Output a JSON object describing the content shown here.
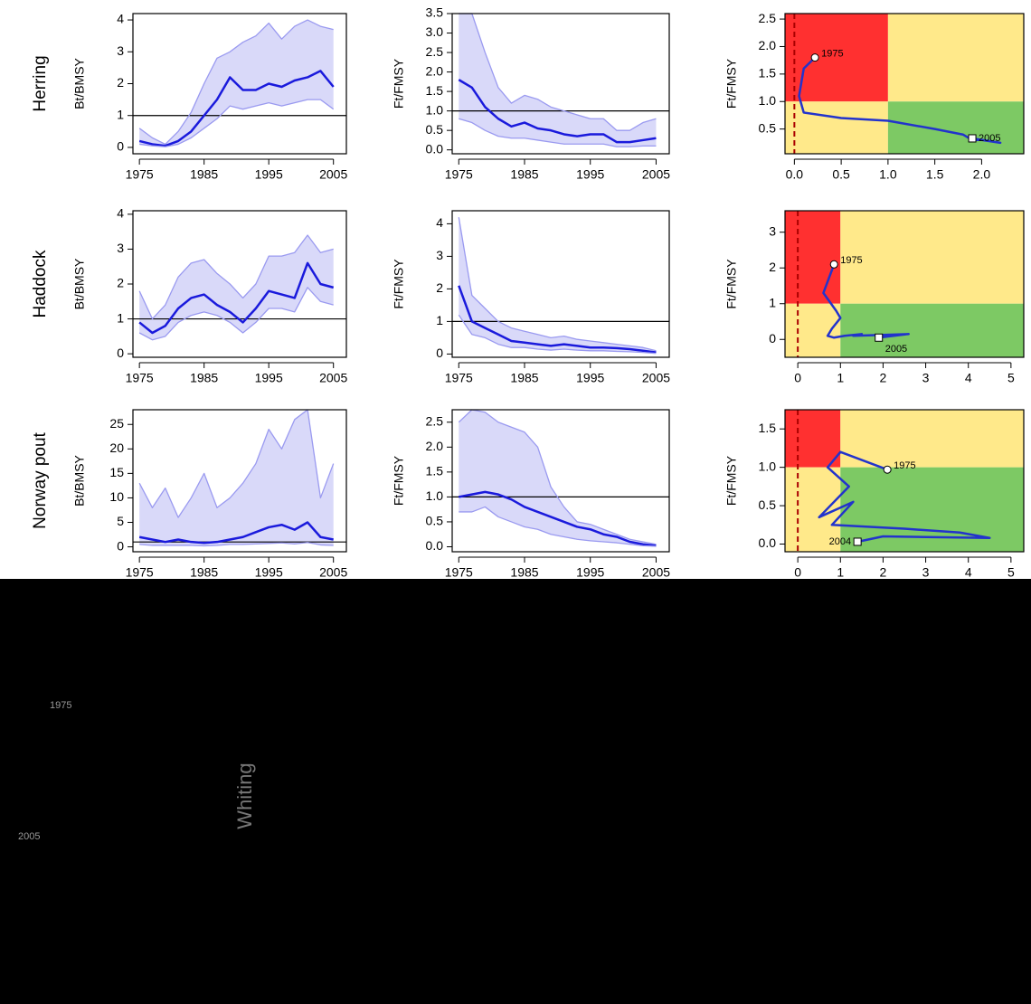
{
  "chart_data": [
    {
      "type": "line",
      "stock": "Herring",
      "y_label": "Bt/BMSY",
      "x": [
        1975,
        1977,
        1979,
        1981,
        1983,
        1985,
        1987,
        1989,
        1991,
        1993,
        1995,
        1997,
        1999,
        2001,
        2003,
        2005
      ],
      "series": [
        {
          "color": "#9a9af0",
          "values": [
            0.6,
            0.3,
            0.1,
            0.5,
            1.1,
            2.0,
            2.8,
            3.0,
            3.3,
            3.5,
            3.9,
            3.4,
            3.8,
            4.0,
            3.8,
            3.7
          ]
        },
        {
          "color": "#1a1adc",
          "values": [
            0.2,
            0.1,
            0.05,
            0.2,
            0.5,
            1.0,
            1.5,
            2.2,
            1.8,
            1.8,
            2.0,
            1.9,
            2.1,
            2.2,
            2.4,
            1.9
          ]
        },
        {
          "color": "#9a9af0",
          "values": [
            0.1,
            0.05,
            0.02,
            0.1,
            0.3,
            0.6,
            0.9,
            1.3,
            1.2,
            1.3,
            1.4,
            1.3,
            1.4,
            1.5,
            1.5,
            1.2
          ]
        }
      ],
      "xlim": [
        1974,
        2007
      ],
      "ylim": [
        -0.2,
        4.2
      ],
      "xticks": [
        1975,
        1985,
        1995,
        2005
      ],
      "yticks": [
        0,
        1,
        2,
        3,
        4
      ],
      "hline": 1
    },
    {
      "type": "line",
      "y_label": "Ft/FMSY",
      "x": [
        1975,
        1977,
        1979,
        1981,
        1983,
        1985,
        1987,
        1989,
        1991,
        1993,
        1995,
        1997,
        1999,
        2001,
        2003,
        2005
      ],
      "series": [
        {
          "color": "#9a9af0",
          "values": [
            3.5,
            3.5,
            2.5,
            1.6,
            1.2,
            1.4,
            1.3,
            1.1,
            1.0,
            0.9,
            0.8,
            0.8,
            0.5,
            0.5,
            0.7,
            0.8
          ]
        },
        {
          "color": "#1a1adc",
          "values": [
            1.8,
            1.6,
            1.1,
            0.8,
            0.6,
            0.7,
            0.55,
            0.5,
            0.4,
            0.35,
            0.4,
            0.4,
            0.2,
            0.2,
            0.25,
            0.3
          ]
        },
        {
          "color": "#9a9af0",
          "values": [
            0.8,
            0.7,
            0.5,
            0.35,
            0.3,
            0.3,
            0.25,
            0.2,
            0.15,
            0.15,
            0.15,
            0.15,
            0.08,
            0.08,
            0.1,
            0.1
          ]
        }
      ],
      "xlim": [
        1974,
        2007
      ],
      "ylim": [
        -0.1,
        3.5
      ],
      "xticks": [
        1975,
        1985,
        1995,
        2005
      ],
      "yticks": [
        {
          "value": 0,
          "label": "0.0"
        },
        0.5,
        {
          "value": 1,
          "label": "1.0"
        },
        1.5,
        {
          "value": 2,
          "label": "2.0"
        },
        2.5,
        {
          "value": 3,
          "label": "3.0"
        },
        3.5
      ],
      "hline": 1
    },
    {
      "type": "phase",
      "y_label": "Ft/FMSY",
      "x": [
        0.22,
        0.1,
        0.05,
        0.1,
        0.5,
        1.0,
        1.5,
        1.8,
        1.9,
        2.0,
        2.2,
        1.9
      ],
      "series": [
        {
          "color": "#2233cc",
          "values": [
            1.8,
            1.6,
            1.1,
            0.8,
            0.7,
            0.65,
            0.5,
            0.4,
            0.3,
            0.3,
            0.25,
            0.33
          ]
        }
      ],
      "start_label": "1975",
      "end_label": "2005",
      "xlim": [
        -0.1,
        2.45
      ],
      "ylim": [
        0.05,
        2.6
      ],
      "xticks": [
        {
          "value": 0,
          "label": "0.0"
        },
        0.5,
        {
          "value": 1,
          "label": "1.0"
        },
        1.5,
        {
          "value": 2,
          "label": "2.0"
        }
      ],
      "yticks": [
        0.5,
        {
          "value": 1,
          "label": "1.0"
        },
        1.5,
        {
          "value": 2,
          "label": "2.0"
        },
        2.5
      ],
      "hline": 1,
      "vline": 1,
      "ref_x": 0,
      "zone_colors": [
        "#ff3030",
        "#ffe98a",
        "#7dc964"
      ]
    },
    {
      "type": "line",
      "stock": "Haddock",
      "y_label": "Bt/BMSY",
      "x": [
        1975,
        1977,
        1979,
        1981,
        1983,
        1985,
        1987,
        1989,
        1991,
        1993,
        1995,
        1997,
        1999,
        2001,
        2003,
        2005
      ],
      "series": [
        {
          "color": "#9a9af0",
          "values": [
            1.8,
            1.0,
            1.4,
            2.2,
            2.6,
            2.7,
            2.3,
            2.0,
            1.6,
            2.0,
            2.8,
            2.8,
            2.9,
            3.4,
            2.9,
            3.0
          ]
        },
        {
          "color": "#1a1adc",
          "values": [
            0.9,
            0.6,
            0.8,
            1.3,
            1.6,
            1.7,
            1.4,
            1.2,
            0.9,
            1.3,
            1.8,
            1.7,
            1.6,
            2.6,
            2.0,
            1.9
          ]
        },
        {
          "color": "#9a9af0",
          "values": [
            0.6,
            0.4,
            0.5,
            0.9,
            1.1,
            1.2,
            1.1,
            0.9,
            0.6,
            0.9,
            1.3,
            1.3,
            1.2,
            1.9,
            1.5,
            1.4
          ]
        }
      ],
      "xlim": [
        1974,
        2007
      ],
      "ylim": [
        -0.1,
        4.1
      ],
      "xticks": [
        1975,
        1985,
        1995,
        2005
      ],
      "yticks": [
        0,
        1,
        2,
        3,
        4
      ],
      "hline": 1
    },
    {
      "type": "line",
      "y_label": "Ft/FMSY",
      "x": [
        1975,
        1977,
        1979,
        1981,
        1983,
        1985,
        1987,
        1989,
        1991,
        1993,
        1995,
        1997,
        1999,
        2001,
        2003,
        2005
      ],
      "series": [
        {
          "color": "#9a9af0",
          "values": [
            4.2,
            1.8,
            1.4,
            1.0,
            0.8,
            0.7,
            0.6,
            0.5,
            0.55,
            0.45,
            0.4,
            0.35,
            0.3,
            0.25,
            0.2,
            0.1
          ]
        },
        {
          "color": "#1a1adc",
          "values": [
            2.1,
            1.0,
            0.8,
            0.6,
            0.4,
            0.35,
            0.3,
            0.25,
            0.3,
            0.25,
            0.2,
            0.2,
            0.18,
            0.15,
            0.1,
            0.05
          ]
        },
        {
          "color": "#9a9af0",
          "values": [
            1.2,
            0.6,
            0.5,
            0.3,
            0.2,
            0.2,
            0.15,
            0.12,
            0.15,
            0.12,
            0.1,
            0.1,
            0.08,
            0.07,
            0.05,
            0.02
          ]
        }
      ],
      "xlim": [
        1974,
        2007
      ],
      "ylim": [
        -0.1,
        4.4
      ],
      "xticks": [
        1975,
        1985,
        1995,
        2005
      ],
      "yticks": [
        0,
        1,
        2,
        3,
        4
      ],
      "hline": 1
    },
    {
      "type": "phase",
      "y_label": "Ft/FMSY",
      "x": [
        0.85,
        0.6,
        0.9,
        1.0,
        0.8,
        0.7,
        0.85,
        1.1,
        1.5,
        1.3,
        2.6,
        1.9
      ],
      "series": [
        {
          "color": "#2233cc",
          "values": [
            2.1,
            1.3,
            0.8,
            0.6,
            0.3,
            0.1,
            0.05,
            0.1,
            0.15,
            0.1,
            0.15,
            0.05
          ]
        }
      ],
      "start_label": "1975",
      "end_label": "2005",
      "xlim": [
        -0.3,
        5.3
      ],
      "ylim": [
        -0.5,
        3.6
      ],
      "xticks": [
        0,
        1,
        2,
        3,
        4,
        5
      ],
      "yticks": [
        0,
        1,
        2,
        3
      ],
      "hline": 1,
      "vline": 1,
      "ref_x": 0,
      "zone_colors": [
        "#ff3030",
        "#ffe98a",
        "#7dc964"
      ]
    },
    {
      "type": "line",
      "stock": "Norway pout",
      "y_label": "Bt/BMSY",
      "x": [
        1975,
        1977,
        1979,
        1981,
        1983,
        1985,
        1987,
        1989,
        1991,
        1993,
        1995,
        1997,
        1999,
        2001,
        2003,
        2005
      ],
      "series": [
        {
          "color": "#9a9af0",
          "values": [
            13,
            8,
            12,
            6,
            10,
            15,
            8,
            10,
            13,
            17,
            24,
            20,
            26,
            28,
            10,
            17
          ]
        },
        {
          "color": "#1a1adc",
          "values": [
            2.0,
            1.5,
            1.0,
            1.5,
            1.0,
            0.8,
            1.0,
            1.5,
            2.0,
            3.0,
            4.0,
            4.5,
            3.5,
            5.0,
            2.0,
            1.5
          ]
        },
        {
          "color": "#9a9af0",
          "values": [
            0.5,
            0.3,
            0.3,
            0.3,
            0.3,
            0.2,
            0.3,
            0.5,
            0.5,
            0.6,
            0.7,
            0.8,
            0.6,
            0.9,
            0.4,
            0.3
          ]
        }
      ],
      "xlim": [
        1974,
        2007
      ],
      "ylim": [
        -1,
        28
      ],
      "xticks": [
        1975,
        1985,
        1995,
        2005
      ],
      "yticks": [
        0,
        5,
        10,
        15,
        20,
        25
      ],
      "hline": 1
    },
    {
      "type": "line",
      "y_label": "Ft/FMSY",
      "x": [
        1975,
        1977,
        1979,
        1981,
        1983,
        1985,
        1987,
        1989,
        1991,
        1993,
        1995,
        1997,
        1999,
        2001,
        2003,
        2005
      ],
      "series": [
        {
          "color": "#9a9af0",
          "values": [
            2.5,
            2.8,
            2.7,
            2.5,
            2.4,
            2.3,
            2.0,
            1.2,
            0.8,
            0.5,
            0.45,
            0.35,
            0.25,
            0.15,
            0.1,
            0.05
          ]
        },
        {
          "color": "#1a1adc",
          "values": [
            1.0,
            1.05,
            1.1,
            1.05,
            0.95,
            0.8,
            0.7,
            0.6,
            0.5,
            0.4,
            0.35,
            0.25,
            0.2,
            0.1,
            0.05,
            0.02
          ]
        },
        {
          "color": "#9a9af0",
          "values": [
            0.7,
            0.7,
            0.8,
            0.6,
            0.5,
            0.4,
            0.35,
            0.25,
            0.2,
            0.15,
            0.12,
            0.1,
            0.08,
            0.05,
            0.02,
            0.01
          ]
        }
      ],
      "xlim": [
        1974,
        2007
      ],
      "ylim": [
        -0.1,
        2.75
      ],
      "xticks": [
        1975,
        1985,
        1995,
        2005
      ],
      "yticks": [
        {
          "value": 0,
          "label": "0.0"
        },
        0.5,
        {
          "value": 1,
          "label": "1.0"
        },
        1.5,
        {
          "value": 2,
          "label": "2.0"
        },
        2.5
      ],
      "hline": 1
    },
    {
      "type": "phase",
      "y_label": "Ft/FMSY",
      "x": [
        2.1,
        1.0,
        0.7,
        1.2,
        0.5,
        1.3,
        0.8,
        2.5,
        3.8,
        4.5,
        2.0,
        1.4
      ],
      "series": [
        {
          "color": "#2233cc",
          "values": [
            0.97,
            1.2,
            1.0,
            0.75,
            0.35,
            0.55,
            0.25,
            0.2,
            0.15,
            0.08,
            0.1,
            0.03
          ]
        }
      ],
      "start_label": "1975",
      "end_label": "2004",
      "xlim": [
        -0.3,
        5.3
      ],
      "ylim": [
        -0.1,
        1.75
      ],
      "xticks": [
        0,
        1,
        2,
        3,
        4,
        5
      ],
      "yticks": [
        {
          "value": 0,
          "label": "0.0"
        },
        0.5,
        {
          "value": 1,
          "label": "1.0"
        },
        1.5
      ],
      "hline": 1,
      "vline": 1,
      "ref_x": 0,
      "zone_colors": [
        "#ff3030",
        "#ffe98a",
        "#7dc964"
      ]
    }
  ],
  "overlay": {
    "labels": [
      "Whiting",
      "1975",
      "2005"
    ]
  }
}
